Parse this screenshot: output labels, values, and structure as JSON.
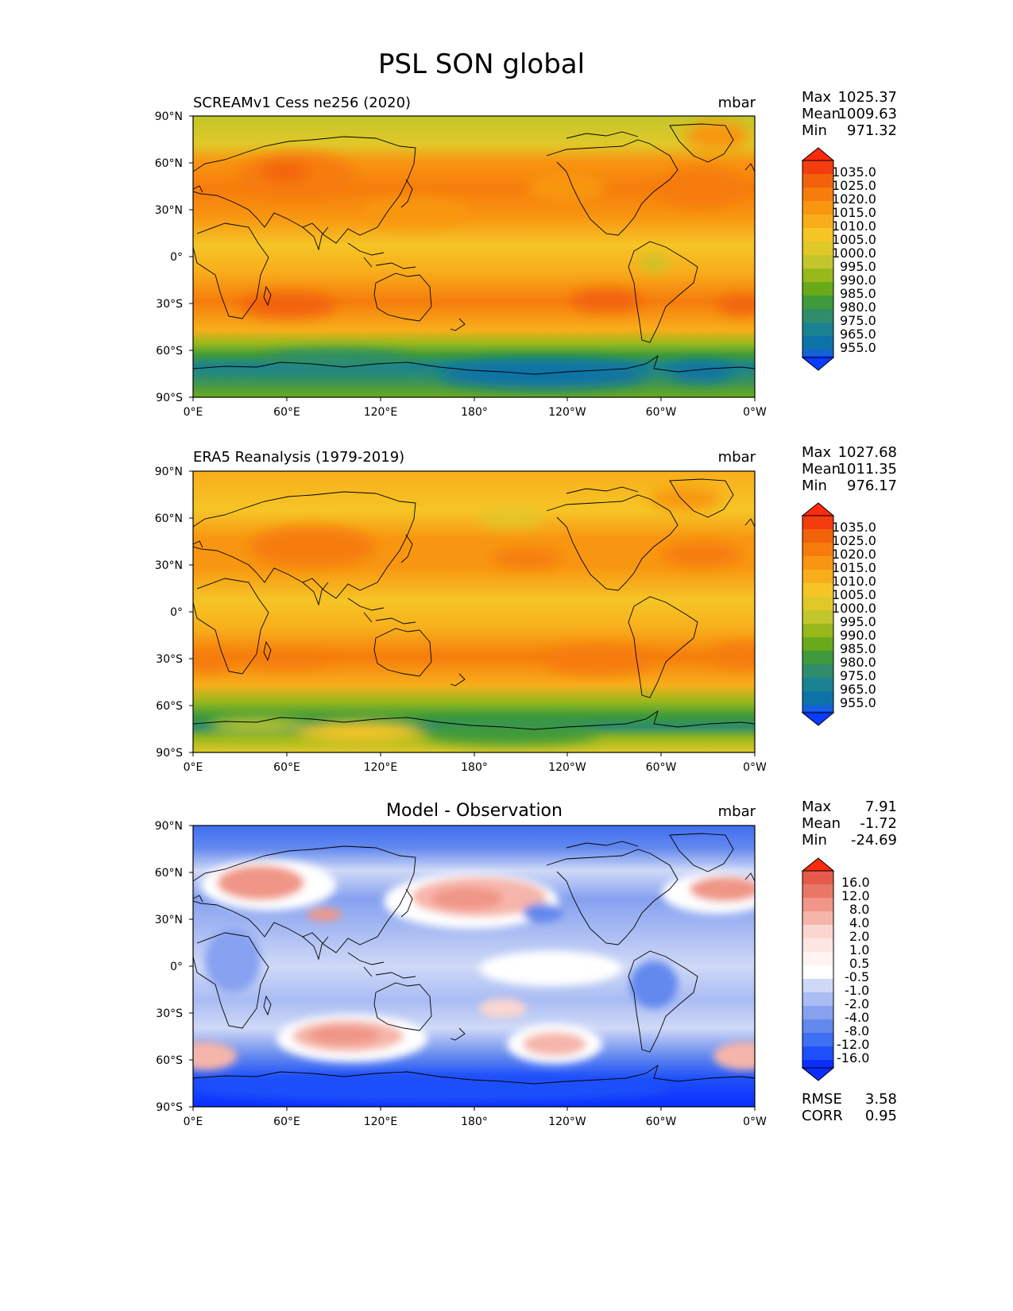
{
  "figure_title": "PSL SON global",
  "colors": {
    "abs_scale": [
      "#0a3cff",
      "#1463d6",
      "#0d73a6",
      "#1a8293",
      "#2f8d6b",
      "#3e9a3a",
      "#69aa1b",
      "#98b81c",
      "#c3c62a",
      "#e0c829",
      "#f5c526",
      "#f8ae1b",
      "#f89611",
      "#f67c0c",
      "#f2620b",
      "#f43c0e",
      "#ff2b0c"
    ],
    "diff_scale": [
      "#0b2eff",
      "#1e50fa",
      "#3f6ff2",
      "#6388ee",
      "#86a1f0",
      "#a9bcf3",
      "#cfd9f7",
      "#ffffff",
      "#fbd6d0",
      "#f6b5aa",
      "#f09686",
      "#e97767",
      "#e55a4c",
      "#ff2b0c"
    ],
    "coastline": "#000000"
  },
  "chart_data": [
    {
      "type": "heatmap",
      "name": "model",
      "title": "SCREAMv1 Cess ne256 (2020)",
      "units": "mbar",
      "stats": {
        "max_label": "Max",
        "max": "1025.37",
        "mean_label": "Mean",
        "mean": "1009.63",
        "min_label": "Min",
        "min": "971.32"
      },
      "xticks": [
        "0°E",
        "60°E",
        "120°E",
        "180°",
        "120°W",
        "60°W",
        "0°W"
      ],
      "yticks": [
        "90°N",
        "60°N",
        "30°N",
        "0°",
        "30°S",
        "60°S",
        "90°S"
      ],
      "xlim": [
        0,
        360
      ],
      "ylim": [
        -90,
        90
      ],
      "colorbar": {
        "levels": [
          "1035.0",
          "1025.0",
          "1020.0",
          "1015.0",
          "1010.0",
          "1005.0",
          "1000.0",
          "995.0",
          "990.0",
          "985.0",
          "980.0",
          "975.0",
          "965.0",
          "955.0"
        ],
        "extend": "both"
      }
    },
    {
      "type": "heatmap",
      "name": "obs",
      "title": "ERA5 Reanalysis (1979-2019)",
      "units": "mbar",
      "stats": {
        "max_label": "Max",
        "max": "1027.68",
        "mean_label": "Mean",
        "mean": "1011.35",
        "min_label": "Min",
        "min": "976.17"
      },
      "xticks": [
        "0°E",
        "60°E",
        "120°E",
        "180°",
        "120°W",
        "60°W",
        "0°W"
      ],
      "yticks": [
        "90°N",
        "60°N",
        "30°N",
        "0°",
        "30°S",
        "60°S",
        "90°S"
      ],
      "xlim": [
        0,
        360
      ],
      "ylim": [
        -90,
        90
      ],
      "colorbar": {
        "levels": [
          "1035.0",
          "1025.0",
          "1020.0",
          "1015.0",
          "1010.0",
          "1005.0",
          "1000.0",
          "995.0",
          "990.0",
          "985.0",
          "980.0",
          "975.0",
          "965.0",
          "955.0"
        ],
        "extend": "both"
      }
    },
    {
      "type": "heatmap",
      "name": "diff",
      "title": "Model - Observation",
      "units": "mbar",
      "stats": {
        "max_label": "Max",
        "max": "7.91",
        "mean_label": "Mean",
        "mean": "-1.72",
        "min_label": "Min",
        "min": "-24.69"
      },
      "extra_stats": {
        "rmse_label": "RMSE",
        "rmse": "3.58",
        "corr_label": "CORR",
        "corr": "0.95"
      },
      "xticks": [
        "0°E",
        "60°E",
        "120°E",
        "180°",
        "120°W",
        "60°W",
        "0°W"
      ],
      "yticks": [
        "90°N",
        "60°N",
        "30°N",
        "0°",
        "30°S",
        "60°S",
        "90°S"
      ],
      "xlim": [
        0,
        360
      ],
      "ylim": [
        -90,
        90
      ],
      "colorbar": {
        "levels": [
          "16.0",
          "12.0",
          "8.0",
          "4.0",
          "2.0",
          "1.0",
          "0.5",
          "-0.5",
          "-1.0",
          "-2.0",
          "-4.0",
          "-8.0",
          "-12.0",
          "-16.0"
        ],
        "extend": "both"
      }
    }
  ]
}
